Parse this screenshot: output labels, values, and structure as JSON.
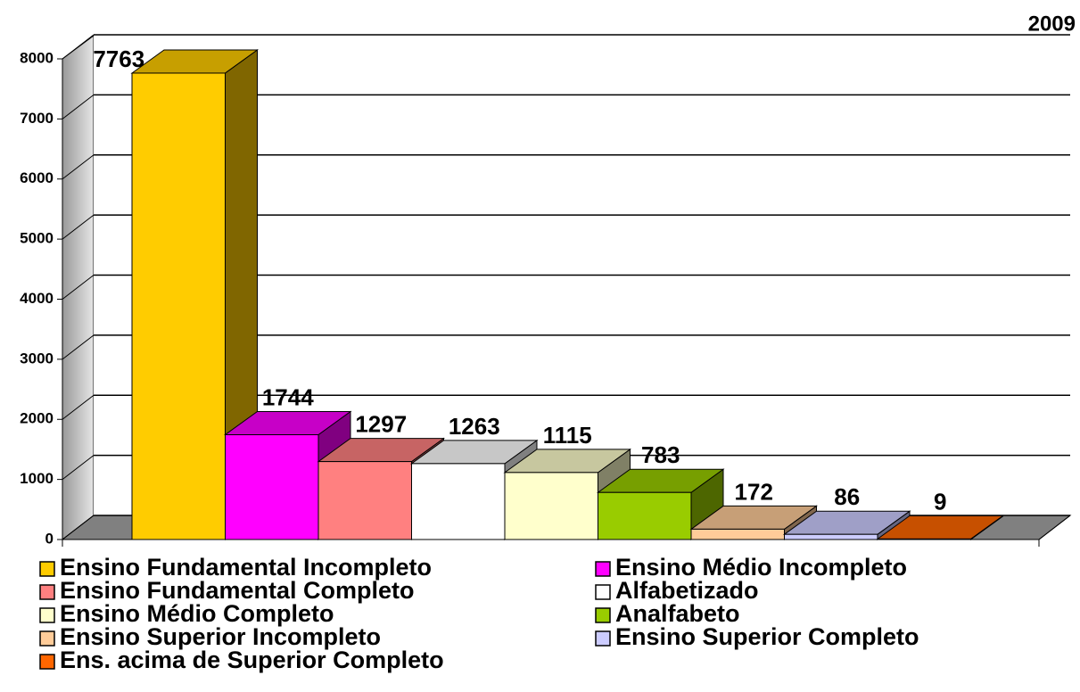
{
  "chart_data": {
    "type": "bar3d",
    "title": "2009",
    "categories": [
      "Ensino Fundamental Incompleto",
      "Ensino Médio Incompleto",
      "Ensino Fundamental Completo",
      "Alfabetizado",
      "Ensino Médio Completo",
      "Analfabeto",
      "Ensino Superior Incompleto",
      "Ensino Superior Completo",
      "Ens. acima de Superior Completo"
    ],
    "values": [
      7763,
      1744,
      1297,
      1263,
      1115,
      783,
      172,
      86,
      9
    ],
    "colors": [
      "#FFCC00",
      "#FF00FF",
      "#FF8080",
      "#FFFFFF",
      "#FFFFCC",
      "#99CC00",
      "#FFCC99",
      "#CCCCFF",
      "#FF6600"
    ],
    "ylim": [
      0,
      8000
    ],
    "yticks": [
      0,
      1000,
      2000,
      3000,
      4000,
      5000,
      6000,
      7000,
      8000
    ],
    "grid": true
  }
}
